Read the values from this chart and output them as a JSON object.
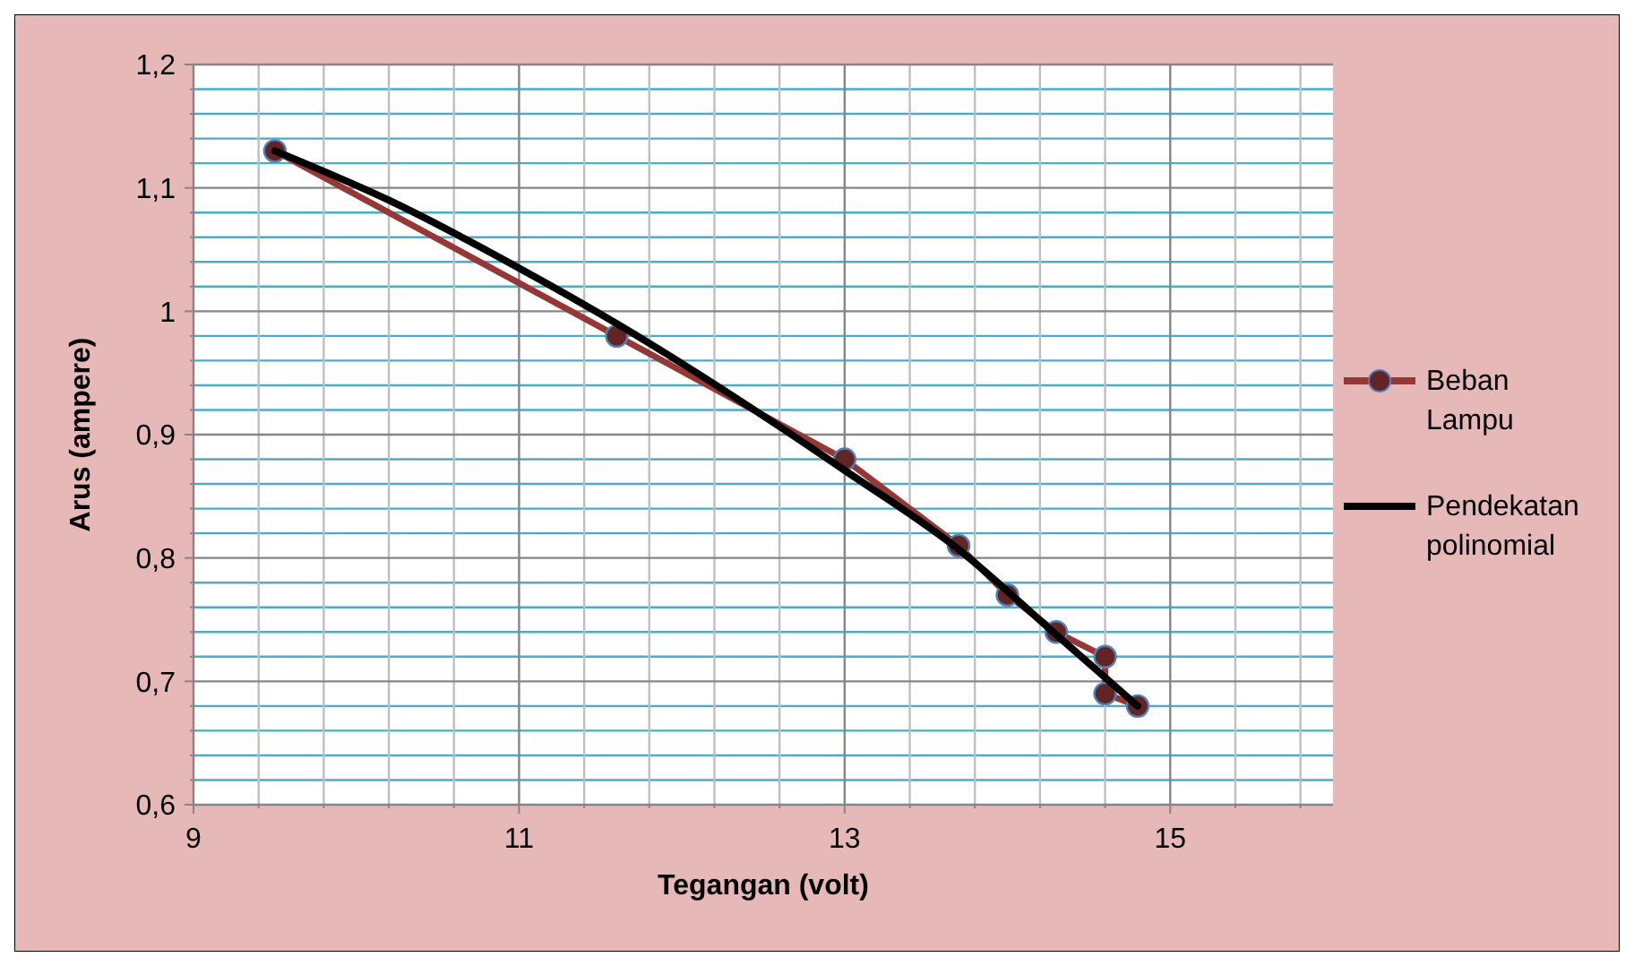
{
  "chart_data": {
    "type": "line",
    "xlabel": "Tegangan (volt)",
    "ylabel": "Arus (ampere)",
    "xlim": [
      9,
      16
    ],
    "xticks": [
      9,
      {
        "value": 9.4,
        "label": null
      },
      {
        "value": 9.8,
        "label": null
      },
      {
        "value": 10.2,
        "label": null
      },
      {
        "value": 10.6,
        "label": null
      },
      11,
      {
        "value": 11.4,
        "label": null
      },
      {
        "value": 11.8,
        "label": null
      },
      {
        "value": 12.2,
        "label": null
      },
      {
        "value": 12.6,
        "label": null
      },
      13,
      {
        "value": 13.4,
        "label": null
      },
      {
        "value": 13.8,
        "label": null
      },
      {
        "value": 14.2,
        "label": null
      },
      {
        "value": 14.6,
        "label": null
      },
      15,
      {
        "value": 15.4,
        "label": null
      },
      {
        "value": 15.8,
        "label": null
      }
    ],
    "ylim": [
      0.6,
      1.2
    ],
    "yticks": [
      {
        "value": 0.6,
        "label": "0,6"
      },
      {
        "value": 0.62,
        "label": null
      },
      {
        "value": 0.64,
        "label": null
      },
      {
        "value": 0.66,
        "label": null
      },
      {
        "value": 0.68,
        "label": null
      },
      {
        "value": 0.7,
        "label": "0,7"
      },
      {
        "value": 0.72,
        "label": null
      },
      {
        "value": 0.74,
        "label": null
      },
      {
        "value": 0.76,
        "label": null
      },
      {
        "value": 0.78,
        "label": null
      },
      {
        "value": 0.8,
        "label": "0,8"
      },
      {
        "value": 0.82,
        "label": null
      },
      {
        "value": 0.84,
        "label": null
      },
      {
        "value": 0.86,
        "label": null
      },
      {
        "value": 0.88,
        "label": null
      },
      {
        "value": 0.9,
        "label": "0,9"
      },
      {
        "value": 0.92,
        "label": null
      },
      {
        "value": 0.94,
        "label": null
      },
      {
        "value": 0.96,
        "label": null
      },
      {
        "value": 0.98,
        "label": null
      },
      {
        "value": 1,
        "label": "1"
      },
      {
        "value": 1.02,
        "label": null
      },
      {
        "value": 1.04,
        "label": null
      },
      {
        "value": 1.06,
        "label": null
      },
      {
        "value": 1.08,
        "label": null
      },
      {
        "value": 1.1,
        "label": "1,1"
      },
      {
        "value": 1.12,
        "label": null
      },
      {
        "value": 1.14,
        "label": null
      },
      {
        "value": 1.16,
        "label": null
      },
      {
        "value": 1.18,
        "label": null
      },
      {
        "value": 1.2,
        "label": "1,2"
      }
    ],
    "grid": true,
    "legend": "right",
    "series": [
      {
        "name": "Beban Lampu",
        "color": "#953735",
        "marker": "circle",
        "x": [
          9.5,
          11.6,
          13,
          13.7,
          14,
          14.3,
          14.6,
          14.6,
          14.8
        ],
        "values": [
          1.13,
          0.98,
          0.88,
          0.81,
          0.77,
          0.74,
          0.72,
          0.69,
          0.68
        ]
      },
      {
        "name": "Pendekatan polinomial",
        "color": "#000000",
        "marker": "none",
        "x": [
          9.5,
          10.2,
          11,
          11.6,
          12.56,
          13,
          13.7,
          14.29,
          14.8
        ],
        "values": [
          1.13,
          1.09,
          1.035,
          0.99,
          0.91,
          0.871,
          0.807,
          0.739,
          0.68
        ]
      }
    ]
  }
}
